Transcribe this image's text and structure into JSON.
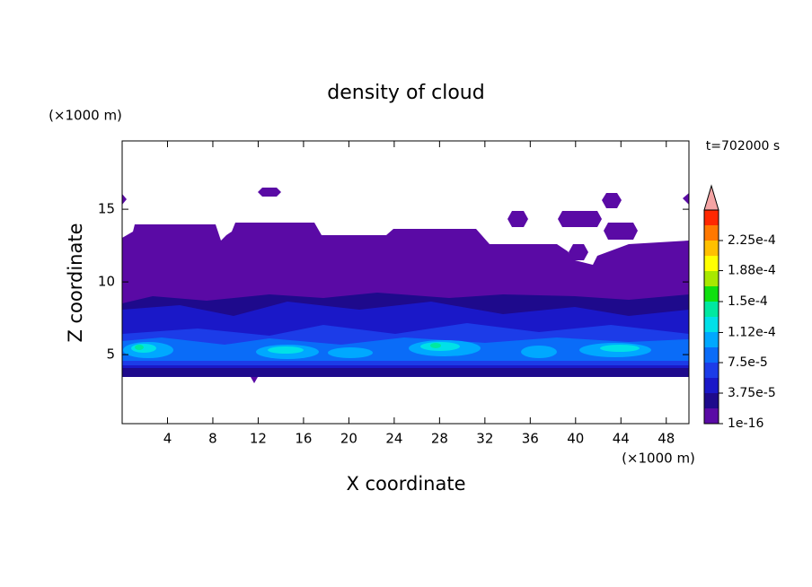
{
  "chart_data": {
    "type": "contour",
    "title": "density of cloud",
    "x_label": "X coordinate",
    "y_label": "Z coordinate",
    "x_unit": "(×1000 m)",
    "y_unit": "(×1000 m)",
    "time_label": "t=702000 s",
    "xlim": [
      0,
      50
    ],
    "xticks": [
      4,
      8,
      12,
      16,
      20,
      24,
      28,
      32,
      36,
      40,
      44,
      48
    ],
    "ylim": [
      0.25,
      19.7
    ],
    "yticks": [
      5,
      10,
      15
    ],
    "colorbar": {
      "clim": [
        1e-16,
        0.0002625
      ],
      "ticks": [
        1e-16,
        {
          "value": 3.75e-05,
          "label": "3.75e-5"
        },
        {
          "value": 7.5e-05,
          "label": "7.5e-5"
        },
        {
          "value": 0.000112,
          "label": "1.12e-4"
        },
        {
          "value": 0.00015,
          "label": "1.5e-4"
        },
        {
          "value": 0.000188,
          "label": "1.88e-4"
        },
        {
          "value": 0.000225,
          "label": "2.25e-4"
        }
      ],
      "colors": [
        "#5a0aa5",
        "#1e0a8c",
        "#1a18c8",
        "#1c3ce8",
        "#0a6cf8",
        "#00a8ff",
        "#00e0e8",
        "#00e8a0",
        "#10e010",
        "#a8e800",
        "#ffff00",
        "#ffc000",
        "#ff7800",
        "#ff2800"
      ],
      "over_color": "#f4a4a4"
    }
  }
}
